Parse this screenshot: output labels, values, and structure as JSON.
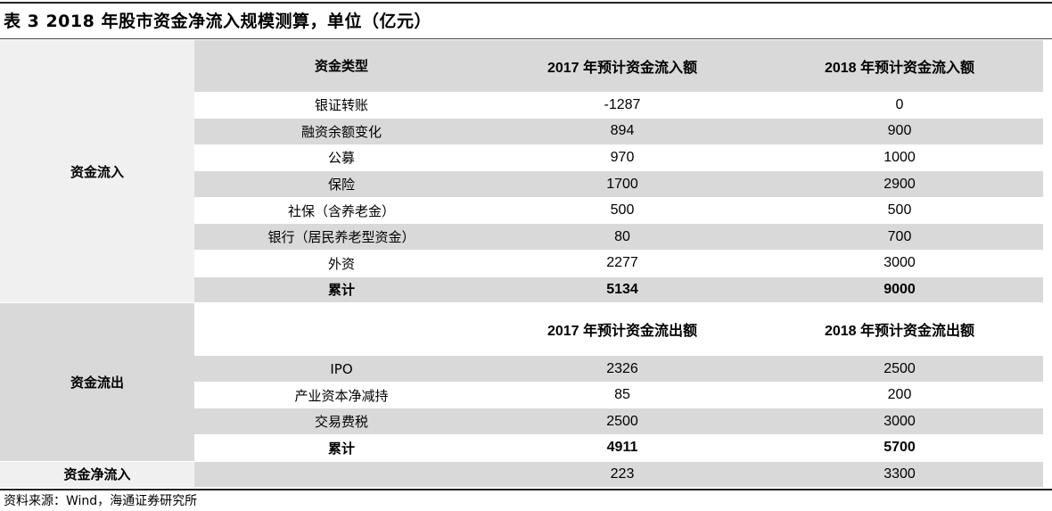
{
  "title": "表 3 2018 年股市资金净流入规模测算，单位（亿元）",
  "inflow": {
    "group_label": "资金流入",
    "header": [
      "资金类型",
      "2017 年预计资金流入额",
      "2018 年预计资金流入额"
    ],
    "rows": [
      [
        "银证转账",
        "-1287",
        "0"
      ],
      [
        "融资余额变化",
        "894",
        "900"
      ],
      [
        "公募",
        "970",
        "1000"
      ],
      [
        "保险",
        "1700",
        "2900"
      ],
      [
        "社保（含养老金）",
        "500",
        "500"
      ],
      [
        "银行（居民养老型资金）",
        "80",
        "700"
      ],
      [
        "外资",
        "2277",
        "3000"
      ]
    ],
    "total": [
      "累计",
      "5134",
      "9000"
    ]
  },
  "outflow": {
    "group_label": "资金流出",
    "header": [
      "",
      "2017 年预计资金流出额",
      "2018 年预计资金流出额"
    ],
    "rows": [
      [
        "IPO",
        "2326",
        "2500"
      ],
      [
        "产业资本净减持",
        "85",
        "200"
      ],
      [
        "交易费税",
        "2500",
        "3000"
      ]
    ],
    "total": [
      "累计",
      "4911",
      "5700"
    ]
  },
  "net": {
    "label": "资金净流入",
    "values": [
      "",
      "223",
      "3300"
    ]
  },
  "source": "资料来源：Wind，海通证券研究所"
}
